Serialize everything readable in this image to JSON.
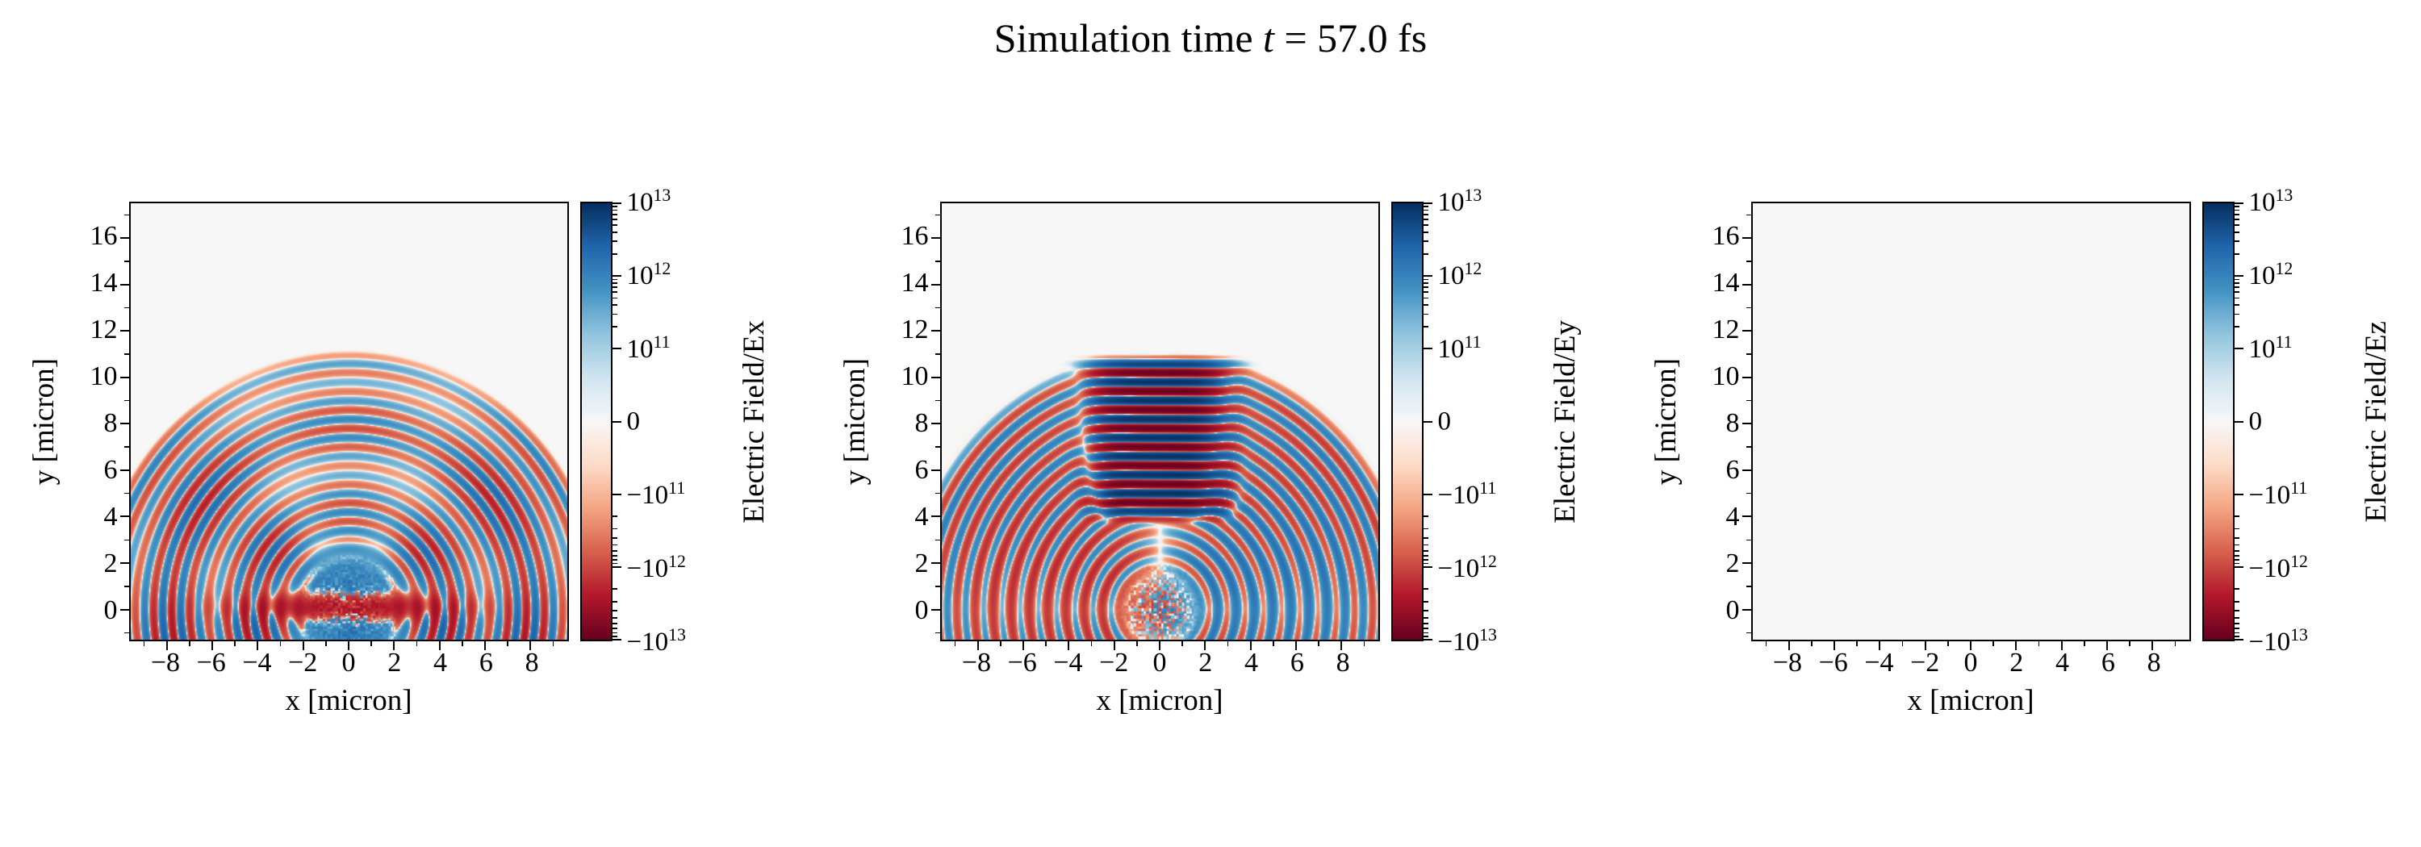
{
  "title": {
    "prefix": "Simulation time ",
    "var": "t",
    "suffix": " = 57.0 fs"
  },
  "axes": {
    "xlabel": "x [micron]",
    "ylabel": "y [micron]",
    "xlim": [
      -9.6,
      9.6
    ],
    "ylim": [
      -1.3,
      17.5
    ],
    "xticks": {
      "values": [
        -8,
        -6,
        -4,
        -2,
        0,
        2,
        4,
        6,
        8
      ],
      "labels": [
        "−8",
        "−6",
        "−4",
        "−2",
        "0",
        "2",
        "4",
        "6",
        "8"
      ]
    },
    "yticks": {
      "values": [
        0,
        2,
        4,
        6,
        8,
        10,
        12,
        14,
        16
      ],
      "labels": [
        "0",
        "2",
        "4",
        "6",
        "8",
        "10",
        "12",
        "14",
        "16"
      ]
    }
  },
  "colorbar": {
    "ticks": {
      "values": [
        10000000000000.0,
        1000000000000.0,
        100000000000.0,
        0,
        -100000000000.0,
        -1000000000000.0,
        -10000000000000.0
      ],
      "labels": [
        "10^13",
        "10^12",
        "10^11",
        "0",
        "−10^11",
        "−10^12",
        "−10^13"
      ]
    }
  },
  "panels": [
    {
      "name": "Ex",
      "cb_label": "Electric Field/Ex"
    },
    {
      "name": "Ey",
      "cb_label": "Electric Field/Ey"
    },
    {
      "name": "Ez",
      "cb_label": "Electric Field/Ez"
    }
  ],
  "colors": {
    "background": "#ffffff",
    "axis": "#000000",
    "zero_field": "#f7f7f7"
  },
  "chart_data": {
    "type": "heatmap",
    "layout": "1x3",
    "suptitle": "Simulation time t = 57.0 fs",
    "time_fs": 57.0,
    "x": {
      "label": "x [micron]",
      "range": [
        -9.6,
        9.6
      ],
      "ticks": [
        -8,
        -6,
        -4,
        -2,
        0,
        2,
        4,
        6,
        8
      ]
    },
    "y": {
      "label": "y [micron]",
      "range": [
        -1.3,
        17.5
      ],
      "ticks": [
        0,
        2,
        4,
        6,
        8,
        10,
        12,
        14,
        16
      ]
    },
    "color_scale": {
      "type": "symlog",
      "vmin": -10000000000000.0,
      "vmax": 10000000000000.0,
      "linthresh": 100000000000.0,
      "colormap": "RdBu",
      "ticks": [
        10000000000000.0,
        1000000000000.0,
        100000000000.0,
        0,
        -100000000000.0,
        -1000000000000.0,
        -10000000000000.0
      ],
      "rdbu_stops": [
        "#67001f",
        "#b2182b",
        "#d6604d",
        "#f4a582",
        "#fddbc7",
        "#f7f7f7",
        "#d1e5f0",
        "#92c5de",
        "#4393c3",
        "#2166ac",
        "#053061"
      ]
    },
    "subplots": [
      {
        "name": "Ex",
        "colorbar_label": "Electric Field/Ex",
        "description": "Concentric semicircular wavefronts of alternating sign (blue/red, amplitude ~1e12–3e12) radiating from a source at the origin out to r≈11 micron; positive (blue) blob near the origin (r<2) and a thin strong negative (red) band along y≈0; pattern weak/nodal along x=0 in the upper region; grainy speckle near the origin."
      },
      {
        "name": "Ey",
        "colorbar_label": "Electric Field/Ey",
        "description": "Same circular wavefronts plus an intense horizontally-striped laser-pulse column (|x|≲3, 4≲y≲11, alternating ±~1e13 bands of period ≈0.8 micron); lower-left region predominantly negative (red wash), lower-right predominantly positive (blue wash); speckle near origin."
      },
      {
        "name": "Ez",
        "colorbar_label": "Electric Field/Ez",
        "description": "Field is zero everywhere — uniform near-white (#f7f7f7) panel."
      }
    ],
    "render_params": {
      "wavelength_micron": 0.8,
      "source_xy": [
        0,
        0
      ],
      "ring_r_inner": 2.0,
      "ring_r_outer": 10.8,
      "ex": {
        "arc_amp": 3000000000000.0,
        "blob_amp": 1800000000000.0,
        "blob_r": 2.0,
        "band_amp": -4000000000000.0,
        "noise_amp": 1500000000000.0
      },
      "ey": {
        "arc_amp": 2200000000000.0,
        "stripe_amp": 9000000000000.0,
        "stripe_half_width": 2.7,
        "stripe_y_min": 4.0,
        "stripe_y_max": 10.6,
        "wash_amp": 600000000000.0,
        "noise_amp": 1400000000000.0
      },
      "ez": {
        "value": 0
      }
    }
  }
}
